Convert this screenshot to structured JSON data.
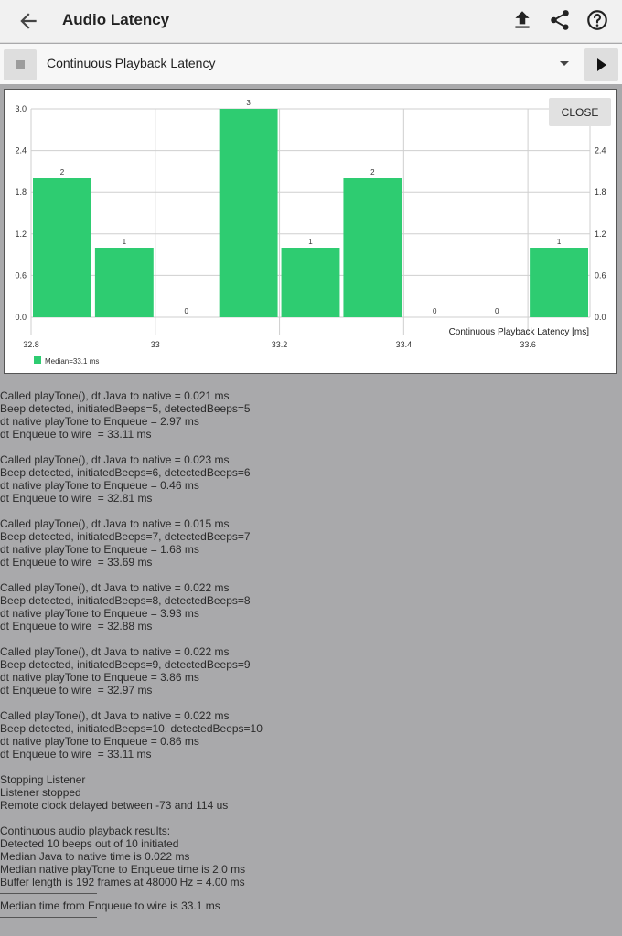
{
  "app_bar": {
    "title": "Audio Latency",
    "icons": [
      "arrow-back-icon",
      "upload-icon",
      "share-icon",
      "help-icon"
    ]
  },
  "toolbar": {
    "selected_test": "Continuous Playback Latency"
  },
  "chart_close_label": "CLOSE",
  "chart_data": {
    "type": "bar",
    "xlabel": "Continuous Playback Latency [ms]",
    "x_ticks": [
      "32.8",
      "33",
      "33.2",
      "33.4",
      "33.6"
    ],
    "y_ticks": [
      "0.0",
      "0.6",
      "1.2",
      "1.8",
      "2.4",
      "3.0"
    ],
    "ylim": [
      0,
      3
    ],
    "xlim": [
      32.8,
      33.7
    ],
    "bins": [
      {
        "x_start": 32.8,
        "x_end": 32.9,
        "value": 2
      },
      {
        "x_start": 32.9,
        "x_end": 33.0,
        "value": 1
      },
      {
        "x_start": 33.0,
        "x_end": 33.1,
        "value": 0
      },
      {
        "x_start": 33.1,
        "x_end": 33.2,
        "value": 3
      },
      {
        "x_start": 33.2,
        "x_end": 33.3,
        "value": 1
      },
      {
        "x_start": 33.3,
        "x_end": 33.4,
        "value": 2
      },
      {
        "x_start": 33.4,
        "x_end": 33.5,
        "value": 0
      },
      {
        "x_start": 33.5,
        "x_end": 33.6,
        "value": 0
      },
      {
        "x_start": 33.6,
        "x_end": 33.7,
        "value": 1
      }
    ],
    "legend": "Median=33.1 ms",
    "legend_placement": "bottom-left",
    "bar_color": "#2ecc71",
    "grid": true
  },
  "log": [
    "Called playTone(), dt Java to native = 0.021 ms",
    "Beep detected, initiatedBeeps=5, detectedBeeps=5",
    "dt native playTone to Enqueue = 2.97 ms",
    "dt Enqueue to wire  = 33.11 ms",
    "",
    "Called playTone(), dt Java to native = 0.023 ms",
    "Beep detected, initiatedBeeps=6, detectedBeeps=6",
    "dt native playTone to Enqueue = 0.46 ms",
    "dt Enqueue to wire  = 32.81 ms",
    "",
    "Called playTone(), dt Java to native = 0.015 ms",
    "Beep detected, initiatedBeeps=7, detectedBeeps=7",
    "dt native playTone to Enqueue = 1.68 ms",
    "dt Enqueue to wire  = 33.69 ms",
    "",
    "Called playTone(), dt Java to native = 0.022 ms",
    "Beep detected, initiatedBeeps=8, detectedBeeps=8",
    "dt native playTone to Enqueue = 3.93 ms",
    "dt Enqueue to wire  = 32.88 ms",
    "",
    "Called playTone(), dt Java to native = 0.022 ms",
    "Beep detected, initiatedBeeps=9, detectedBeeps=9",
    "dt native playTone to Enqueue = 3.86 ms",
    "dt Enqueue to wire  = 32.97 ms",
    "",
    "Called playTone(), dt Java to native = 0.022 ms",
    "Beep detected, initiatedBeeps=10, detectedBeeps=10",
    "dt native playTone to Enqueue = 0.86 ms",
    "dt Enqueue to wire  = 33.11 ms",
    "",
    "Stopping Listener",
    "Listener stopped",
    "Remote clock delayed between -73 and 114 us",
    "",
    "Continuous audio playback results:",
    "Detected 10 beeps out of 10 initiated",
    "Median Java to native time is 0.022 ms",
    "Median native playTone to Enqueue time is 2.0 ms",
    "Buffer length is 192 frames at 48000 Hz = 4.00 ms",
    "---",
    "Median time from Enqueue to wire is 33.1 ms",
    "---"
  ]
}
